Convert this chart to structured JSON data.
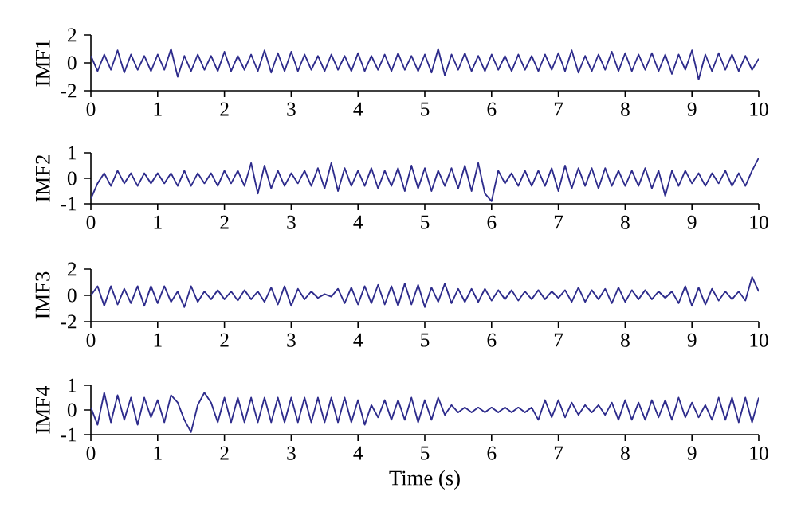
{
  "chart_data": [
    {
      "type": "line",
      "ylabel": "IMF1",
      "xlim": [
        0,
        10
      ],
      "ylim": [
        -2,
        2
      ],
      "xticks": [
        0,
        1,
        2,
        3,
        4,
        5,
        6,
        7,
        8,
        9,
        10
      ],
      "yticks": [
        -2,
        0,
        2
      ],
      "x": [
        0,
        0.1,
        0.2,
        0.3,
        0.4,
        0.5,
        0.6,
        0.7,
        0.8,
        0.9,
        1,
        1.1,
        1.2,
        1.3,
        1.4,
        1.5,
        1.6,
        1.7,
        1.8,
        1.9,
        2,
        2.1,
        2.2,
        2.3,
        2.4,
        2.5,
        2.6,
        2.7,
        2.8,
        2.9,
        3,
        3.1,
        3.2,
        3.3,
        3.4,
        3.5,
        3.6,
        3.7,
        3.8,
        3.9,
        4,
        4.1,
        4.2,
        4.3,
        4.4,
        4.5,
        4.6,
        4.7,
        4.8,
        4.9,
        5,
        5.1,
        5.2,
        5.3,
        5.4,
        5.5,
        5.6,
        5.7,
        5.8,
        5.9,
        6,
        6.1,
        6.2,
        6.3,
        6.4,
        6.5,
        6.6,
        6.7,
        6.8,
        6.9,
        7,
        7.1,
        7.2,
        7.3,
        7.4,
        7.5,
        7.6,
        7.7,
        7.8,
        7.9,
        8,
        8.1,
        8.2,
        8.3,
        8.4,
        8.5,
        8.6,
        8.7,
        8.8,
        8.9,
        9,
        9.1,
        9.2,
        9.3,
        9.4,
        9.5,
        9.6,
        9.7,
        9.8,
        9.9,
        10
      ],
      "series": [
        {
          "color": "#2e2c8c",
          "values": [
            0.5,
            -0.6,
            0.6,
            -0.5,
            0.9,
            -0.7,
            0.6,
            -0.5,
            0.5,
            -0.6,
            0.6,
            -0.5,
            1.0,
            -1.0,
            0.5,
            -0.6,
            0.6,
            -0.5,
            0.5,
            -0.6,
            0.8,
            -0.6,
            0.5,
            -0.5,
            0.6,
            -0.6,
            0.9,
            -0.7,
            0.7,
            -0.6,
            0.8,
            -0.6,
            0.6,
            -0.5,
            0.5,
            -0.6,
            0.6,
            -0.5,
            0.5,
            -0.6,
            0.7,
            -0.6,
            0.5,
            -0.5,
            0.6,
            -0.6,
            0.7,
            -0.5,
            0.5,
            -0.6,
            0.6,
            -0.7,
            1.0,
            -0.9,
            0.6,
            -0.5,
            0.7,
            -0.6,
            0.5,
            -0.6,
            0.6,
            -0.5,
            0.5,
            -0.6,
            0.6,
            -0.5,
            0.5,
            -0.6,
            0.6,
            -0.5,
            0.7,
            -0.6,
            0.9,
            -0.7,
            0.5,
            -0.6,
            0.6,
            -0.5,
            0.8,
            -0.6,
            0.7,
            -0.6,
            0.6,
            -0.5,
            0.7,
            -0.6,
            0.6,
            -0.8,
            0.6,
            -0.5,
            0.9,
            -1.2,
            0.6,
            -0.6,
            0.7,
            -0.5,
            0.6,
            -0.6,
            0.5,
            -0.5,
            0.3
          ]
        }
      ]
    },
    {
      "type": "line",
      "ylabel": "IMF2",
      "xlim": [
        0,
        10
      ],
      "ylim": [
        -1,
        1
      ],
      "xticks": [
        0,
        1,
        2,
        3,
        4,
        5,
        6,
        7,
        8,
        9,
        10
      ],
      "yticks": [
        -1,
        0,
        1
      ],
      "x": [
        0,
        0.1,
        0.2,
        0.3,
        0.4,
        0.5,
        0.6,
        0.7,
        0.8,
        0.9,
        1,
        1.1,
        1.2,
        1.3,
        1.4,
        1.5,
        1.6,
        1.7,
        1.8,
        1.9,
        2,
        2.1,
        2.2,
        2.3,
        2.4,
        2.5,
        2.6,
        2.7,
        2.8,
        2.9,
        3,
        3.1,
        3.2,
        3.3,
        3.4,
        3.5,
        3.6,
        3.7,
        3.8,
        3.9,
        4,
        4.1,
        4.2,
        4.3,
        4.4,
        4.5,
        4.6,
        4.7,
        4.8,
        4.9,
        5,
        5.1,
        5.2,
        5.3,
        5.4,
        5.5,
        5.6,
        5.7,
        5.8,
        5.9,
        6,
        6.1,
        6.2,
        6.3,
        6.4,
        6.5,
        6.6,
        6.7,
        6.8,
        6.9,
        7,
        7.1,
        7.2,
        7.3,
        7.4,
        7.5,
        7.6,
        7.7,
        7.8,
        7.9,
        8,
        8.1,
        8.2,
        8.3,
        8.4,
        8.5,
        8.6,
        8.7,
        8.8,
        8.9,
        9,
        9.1,
        9.2,
        9.3,
        9.4,
        9.5,
        9.6,
        9.7,
        9.8,
        9.9,
        10
      ],
      "series": [
        {
          "color": "#2e2c8c",
          "values": [
            -0.8,
            -0.2,
            0.2,
            -0.3,
            0.3,
            -0.2,
            0.2,
            -0.3,
            0.2,
            -0.2,
            0.2,
            -0.2,
            0.2,
            -0.3,
            0.3,
            -0.3,
            0.2,
            -0.2,
            0.2,
            -0.3,
            0.3,
            -0.2,
            0.3,
            -0.3,
            0.6,
            -0.6,
            0.5,
            -0.4,
            0.3,
            -0.3,
            0.2,
            -0.2,
            0.3,
            -0.3,
            0.4,
            -0.4,
            0.6,
            -0.5,
            0.4,
            -0.3,
            0.3,
            -0.3,
            0.4,
            -0.4,
            0.3,
            -0.3,
            0.4,
            -0.5,
            0.5,
            -0.4,
            0.4,
            -0.5,
            0.3,
            -0.3,
            0.4,
            -0.4,
            0.5,
            -0.5,
            0.6,
            -0.6,
            -0.9,
            0.3,
            -0.2,
            0.2,
            -0.3,
            0.3,
            -0.3,
            0.3,
            -0.3,
            0.4,
            -0.5,
            0.5,
            -0.4,
            0.4,
            -0.3,
            0.4,
            -0.4,
            0.4,
            -0.3,
            0.3,
            -0.3,
            0.3,
            -0.3,
            0.4,
            -0.4,
            0.3,
            -0.7,
            0.3,
            -0.3,
            0.3,
            -0.2,
            0.2,
            -0.3,
            0.2,
            -0.2,
            0.3,
            -0.3,
            0.2,
            -0.3,
            0.3,
            0.8
          ]
        }
      ]
    },
    {
      "type": "line",
      "ylabel": "IMF3",
      "xlim": [
        0,
        10
      ],
      "ylim": [
        -2,
        2
      ],
      "xticks": [
        0,
        1,
        2,
        3,
        4,
        5,
        6,
        7,
        8,
        9,
        10
      ],
      "yticks": [
        -2,
        0,
        2
      ],
      "x": [
        0,
        0.1,
        0.2,
        0.3,
        0.4,
        0.5,
        0.6,
        0.7,
        0.8,
        0.9,
        1,
        1.1,
        1.2,
        1.3,
        1.4,
        1.5,
        1.6,
        1.7,
        1.8,
        1.9,
        2,
        2.1,
        2.2,
        2.3,
        2.4,
        2.5,
        2.6,
        2.7,
        2.8,
        2.9,
        3,
        3.1,
        3.2,
        3.3,
        3.4,
        3.5,
        3.6,
        3.7,
        3.8,
        3.9,
        4,
        4.1,
        4.2,
        4.3,
        4.4,
        4.5,
        4.6,
        4.7,
        4.8,
        4.9,
        5,
        5.1,
        5.2,
        5.3,
        5.4,
        5.5,
        5.6,
        5.7,
        5.8,
        5.9,
        6,
        6.1,
        6.2,
        6.3,
        6.4,
        6.5,
        6.6,
        6.7,
        6.8,
        6.9,
        7,
        7.1,
        7.2,
        7.3,
        7.4,
        7.5,
        7.6,
        7.7,
        7.8,
        7.9,
        8,
        8.1,
        8.2,
        8.3,
        8.4,
        8.5,
        8.6,
        8.7,
        8.8,
        8.9,
        9,
        9.1,
        9.2,
        9.3,
        9.4,
        9.5,
        9.6,
        9.7,
        9.8,
        9.9,
        10
      ],
      "series": [
        {
          "color": "#2e2c8c",
          "values": [
            0,
            0.7,
            -0.8,
            0.7,
            -0.7,
            0.5,
            -0.6,
            0.7,
            -0.8,
            0.7,
            -0.6,
            0.7,
            -0.5,
            0.3,
            -0.9,
            0.7,
            -0.5,
            0.3,
            -0.3,
            0.4,
            -0.3,
            0.3,
            -0.4,
            0.4,
            -0.3,
            0.3,
            -0.5,
            0.6,
            -0.7,
            0.7,
            -0.8,
            0.5,
            -0.3,
            0.3,
            -0.2,
            0.1,
            -0.1,
            0.5,
            -0.6,
            0.6,
            -0.7,
            0.7,
            -0.6,
            0.8,
            -0.7,
            0.7,
            -0.8,
            0.9,
            -0.7,
            0.8,
            -0.9,
            0.6,
            -0.5,
            0.9,
            -0.6,
            0.5,
            -0.5,
            0.5,
            -0.5,
            0.5,
            -0.4,
            0.4,
            -0.3,
            0.4,
            -0.4,
            0.3,
            -0.3,
            0.4,
            -0.3,
            0.3,
            -0.2,
            0.4,
            -0.5,
            0.6,
            -0.5,
            0.4,
            -0.3,
            0.5,
            -0.6,
            0.6,
            -0.5,
            0.4,
            -0.3,
            0.4,
            -0.3,
            0.3,
            -0.2,
            0.3,
            -0.6,
            0.7,
            -0.8,
            0.6,
            -0.7,
            0.5,
            -0.4,
            0.3,
            -0.3,
            0.3,
            -0.4,
            1.4,
            0.3
          ]
        }
      ]
    },
    {
      "type": "line",
      "ylabel": "IMF4",
      "xlabel": "Time (s)",
      "xlim": [
        0,
        10
      ],
      "ylim": [
        -1,
        1
      ],
      "xticks": [
        0,
        1,
        2,
        3,
        4,
        5,
        6,
        7,
        8,
        9,
        10
      ],
      "yticks": [
        -1,
        0,
        1
      ],
      "x": [
        0,
        0.1,
        0.2,
        0.3,
        0.4,
        0.5,
        0.6,
        0.7,
        0.8,
        0.9,
        1,
        1.1,
        1.2,
        1.3,
        1.4,
        1.5,
        1.6,
        1.7,
        1.8,
        1.9,
        2,
        2.1,
        2.2,
        2.3,
        2.4,
        2.5,
        2.6,
        2.7,
        2.8,
        2.9,
        3,
        3.1,
        3.2,
        3.3,
        3.4,
        3.5,
        3.6,
        3.7,
        3.8,
        3.9,
        4,
        4.1,
        4.2,
        4.3,
        4.4,
        4.5,
        4.6,
        4.7,
        4.8,
        4.9,
        5,
        5.1,
        5.2,
        5.3,
        5.4,
        5.5,
        5.6,
        5.7,
        5.8,
        5.9,
        6,
        6.1,
        6.2,
        6.3,
        6.4,
        6.5,
        6.6,
        6.7,
        6.8,
        6.9,
        7,
        7.1,
        7.2,
        7.3,
        7.4,
        7.5,
        7.6,
        7.7,
        7.8,
        7.9,
        8,
        8.1,
        8.2,
        8.3,
        8.4,
        8.5,
        8.6,
        8.7,
        8.8,
        8.9,
        9,
        9.1,
        9.2,
        9.3,
        9.4,
        9.5,
        9.6,
        9.7,
        9.8,
        9.9,
        10
      ],
      "series": [
        {
          "color": "#2e2c8c",
          "values": [
            0.1,
            -0.6,
            0.7,
            -0.5,
            0.6,
            -0.4,
            0.5,
            -0.6,
            0.5,
            -0.3,
            0.4,
            -0.5,
            0.6,
            0.3,
            -0.4,
            -0.9,
            0.2,
            0.7,
            0.3,
            -0.5,
            0.5,
            -0.5,
            0.5,
            -0.5,
            0.5,
            -0.5,
            0.5,
            -0.5,
            0.5,
            -0.5,
            0.5,
            -0.5,
            0.5,
            -0.5,
            0.5,
            -0.5,
            0.5,
            -0.5,
            0.5,
            -0.5,
            0.4,
            -0.6,
            0.2,
            -0.3,
            0.4,
            -0.4,
            0.4,
            -0.4,
            0.5,
            -0.5,
            0.4,
            -0.4,
            0.5,
            -0.2,
            0.2,
            -0.1,
            0.1,
            -0.1,
            0.1,
            -0.1,
            0.1,
            -0.1,
            0.1,
            -0.1,
            0.1,
            -0.1,
            0.1,
            -0.4,
            0.4,
            -0.3,
            0.4,
            -0.3,
            0.3,
            -0.2,
            0.2,
            -0.1,
            0.2,
            -0.2,
            0.3,
            -0.4,
            0.4,
            -0.4,
            0.3,
            -0.4,
            0.4,
            -0.3,
            0.4,
            -0.4,
            0.5,
            -0.3,
            0.3,
            -0.3,
            0.2,
            -0.4,
            0.5,
            -0.4,
            0.5,
            -0.5,
            0.5,
            -0.5,
            0.5
          ]
        }
      ]
    }
  ]
}
